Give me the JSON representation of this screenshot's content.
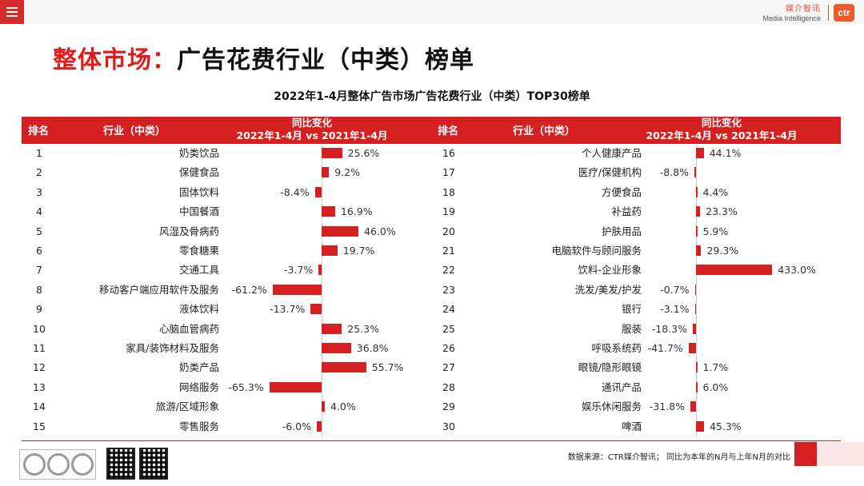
{
  "header": {
    "brand_cn": "媒介智讯",
    "brand_en": "Media Intelligence",
    "logo": "ctr",
    "menu_icon": "menu-icon"
  },
  "title": {
    "prefix": "整体市场：",
    "main": "广告花费行业（中类）榜单"
  },
  "subtitle": "2022年1-4月整体广告市场广告花费行业（中类）TOP30榜单",
  "table_header": {
    "rank": "排名",
    "industry": "行业（中类）",
    "change_line1": "同比变化",
    "change_line2": "2022年1-4月 vs 2021年1-4月"
  },
  "chart_data": {
    "type": "bar",
    "title": "2022年1-4月整体广告市场广告花费行业（中类）TOP30榜单",
    "xlabel": "同比变化 2022年1-4月 vs 2021年1-4月",
    "unit": "%",
    "left": [
      {
        "rank": "1",
        "industry": "奶类饮品",
        "value": 25.6,
        "label": "25.6%"
      },
      {
        "rank": "2",
        "industry": "保健食品",
        "value": 9.2,
        "label": "9.2%"
      },
      {
        "rank": "3",
        "industry": "固体饮料",
        "value": -8.4,
        "label": "-8.4%"
      },
      {
        "rank": "4",
        "industry": "中国餐酒",
        "value": 16.9,
        "label": "16.9%"
      },
      {
        "rank": "5",
        "industry": "风湿及骨病药",
        "value": 46.0,
        "label": "46.0%"
      },
      {
        "rank": "6",
        "industry": "零食糖果",
        "value": 19.7,
        "label": "19.7%"
      },
      {
        "rank": "7",
        "industry": "交通工具",
        "value": -3.7,
        "label": "-3.7%"
      },
      {
        "rank": "8",
        "industry": "移动客户端应用软件及服务",
        "value": -61.2,
        "label": "-61.2%"
      },
      {
        "rank": "9",
        "industry": "液体饮料",
        "value": -13.7,
        "label": "-13.7%"
      },
      {
        "rank": "10",
        "industry": "心脑血管病药",
        "value": 25.3,
        "label": "25.3%"
      },
      {
        "rank": "11",
        "industry": "家具/装饰材料及服务",
        "value": 36.8,
        "label": "36.8%"
      },
      {
        "rank": "12",
        "industry": "奶类产品",
        "value": 55.7,
        "label": "55.7%"
      },
      {
        "rank": "13",
        "industry": "网络服务",
        "value": -65.3,
        "label": "-65.3%"
      },
      {
        "rank": "14",
        "industry": "旅游/区域形象",
        "value": 4.0,
        "label": "4.0%"
      },
      {
        "rank": "15",
        "industry": "零售服务",
        "value": -6.0,
        "label": "-6.0%"
      }
    ],
    "right": [
      {
        "rank": "16",
        "industry": "个人健康产品",
        "value": 44.1,
        "label": "44.1%"
      },
      {
        "rank": "17",
        "industry": "医疗/保健机构",
        "value": -8.8,
        "label": "-8.8%"
      },
      {
        "rank": "18",
        "industry": "方便食品",
        "value": 4.4,
        "label": "4.4%"
      },
      {
        "rank": "19",
        "industry": "补益药",
        "value": 23.3,
        "label": "23.3%"
      },
      {
        "rank": "20",
        "industry": "护肤用品",
        "value": 5.9,
        "label": "5.9%"
      },
      {
        "rank": "21",
        "industry": "电脑软件与顾问服务",
        "value": 29.3,
        "label": "29.3%"
      },
      {
        "rank": "22",
        "industry": "饮料-企业形象",
        "value": 433.0,
        "label": "433.0%"
      },
      {
        "rank": "23",
        "industry": "洗发/美发/护发",
        "value": -0.7,
        "label": "-0.7%"
      },
      {
        "rank": "24",
        "industry": "银行",
        "value": -3.1,
        "label": "-3.1%"
      },
      {
        "rank": "25",
        "industry": "服装",
        "value": -18.3,
        "label": "-18.3%"
      },
      {
        "rank": "26",
        "industry": "呼吸系统药",
        "value": -41.7,
        "label": "-41.7%"
      },
      {
        "rank": "27",
        "industry": "眼镜/隐形眼镜",
        "value": 1.7,
        "label": "1.7%"
      },
      {
        "rank": "28",
        "industry": "通讯产品",
        "value": 6.0,
        "label": "6.0%"
      },
      {
        "rank": "29",
        "industry": "娱乐休闲服务",
        "value": -31.8,
        "label": "-31.8%"
      },
      {
        "rank": "30",
        "industry": "啤酒",
        "value": 45.3,
        "label": "45.3%"
      }
    ]
  },
  "footer": {
    "source": "数据来源：CTR媒介智讯；  同比为本年的N月与上年N月的对比"
  },
  "colors": {
    "accent": "#d42020",
    "title_red": "#e01b1b"
  }
}
